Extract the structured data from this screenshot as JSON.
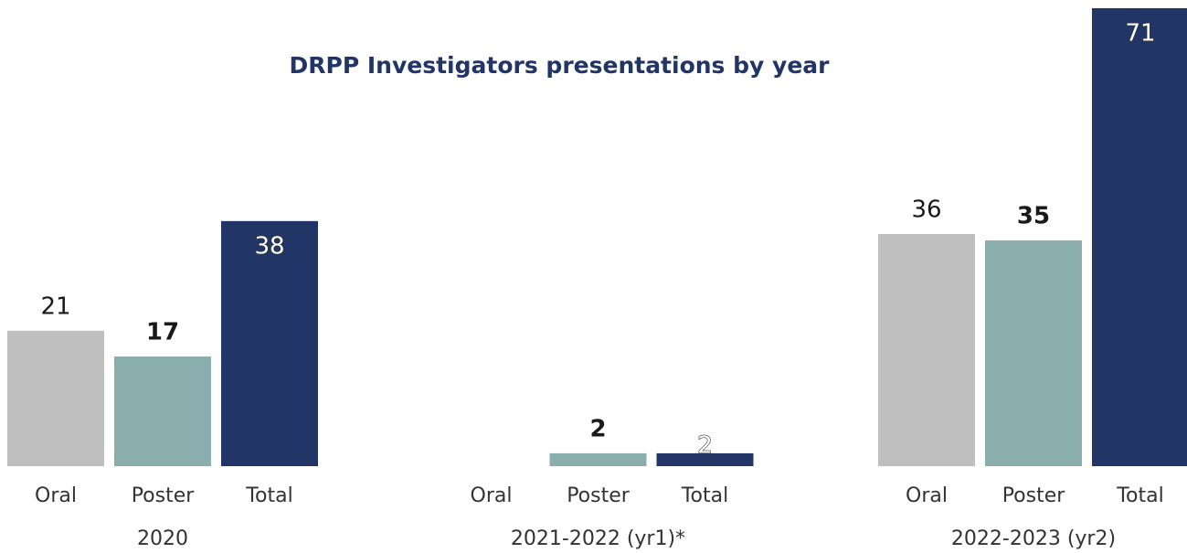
{
  "chart_data": {
    "type": "bar",
    "title": "DRPP Investigators presentations by year",
    "categories": [
      "2020",
      "2021-2022 (yr1)*",
      "2022-2023 (yr2)"
    ],
    "series": [
      {
        "name": "Oral",
        "color": "#bfbfbf",
        "values": [
          21,
          null,
          36
        ]
      },
      {
        "name": "Poster",
        "color": "#8aadad",
        "values": [
          17,
          2,
          35
        ]
      },
      {
        "name": "Total",
        "color": "#223567",
        "values": [
          38,
          2,
          71
        ]
      }
    ]
  }
}
